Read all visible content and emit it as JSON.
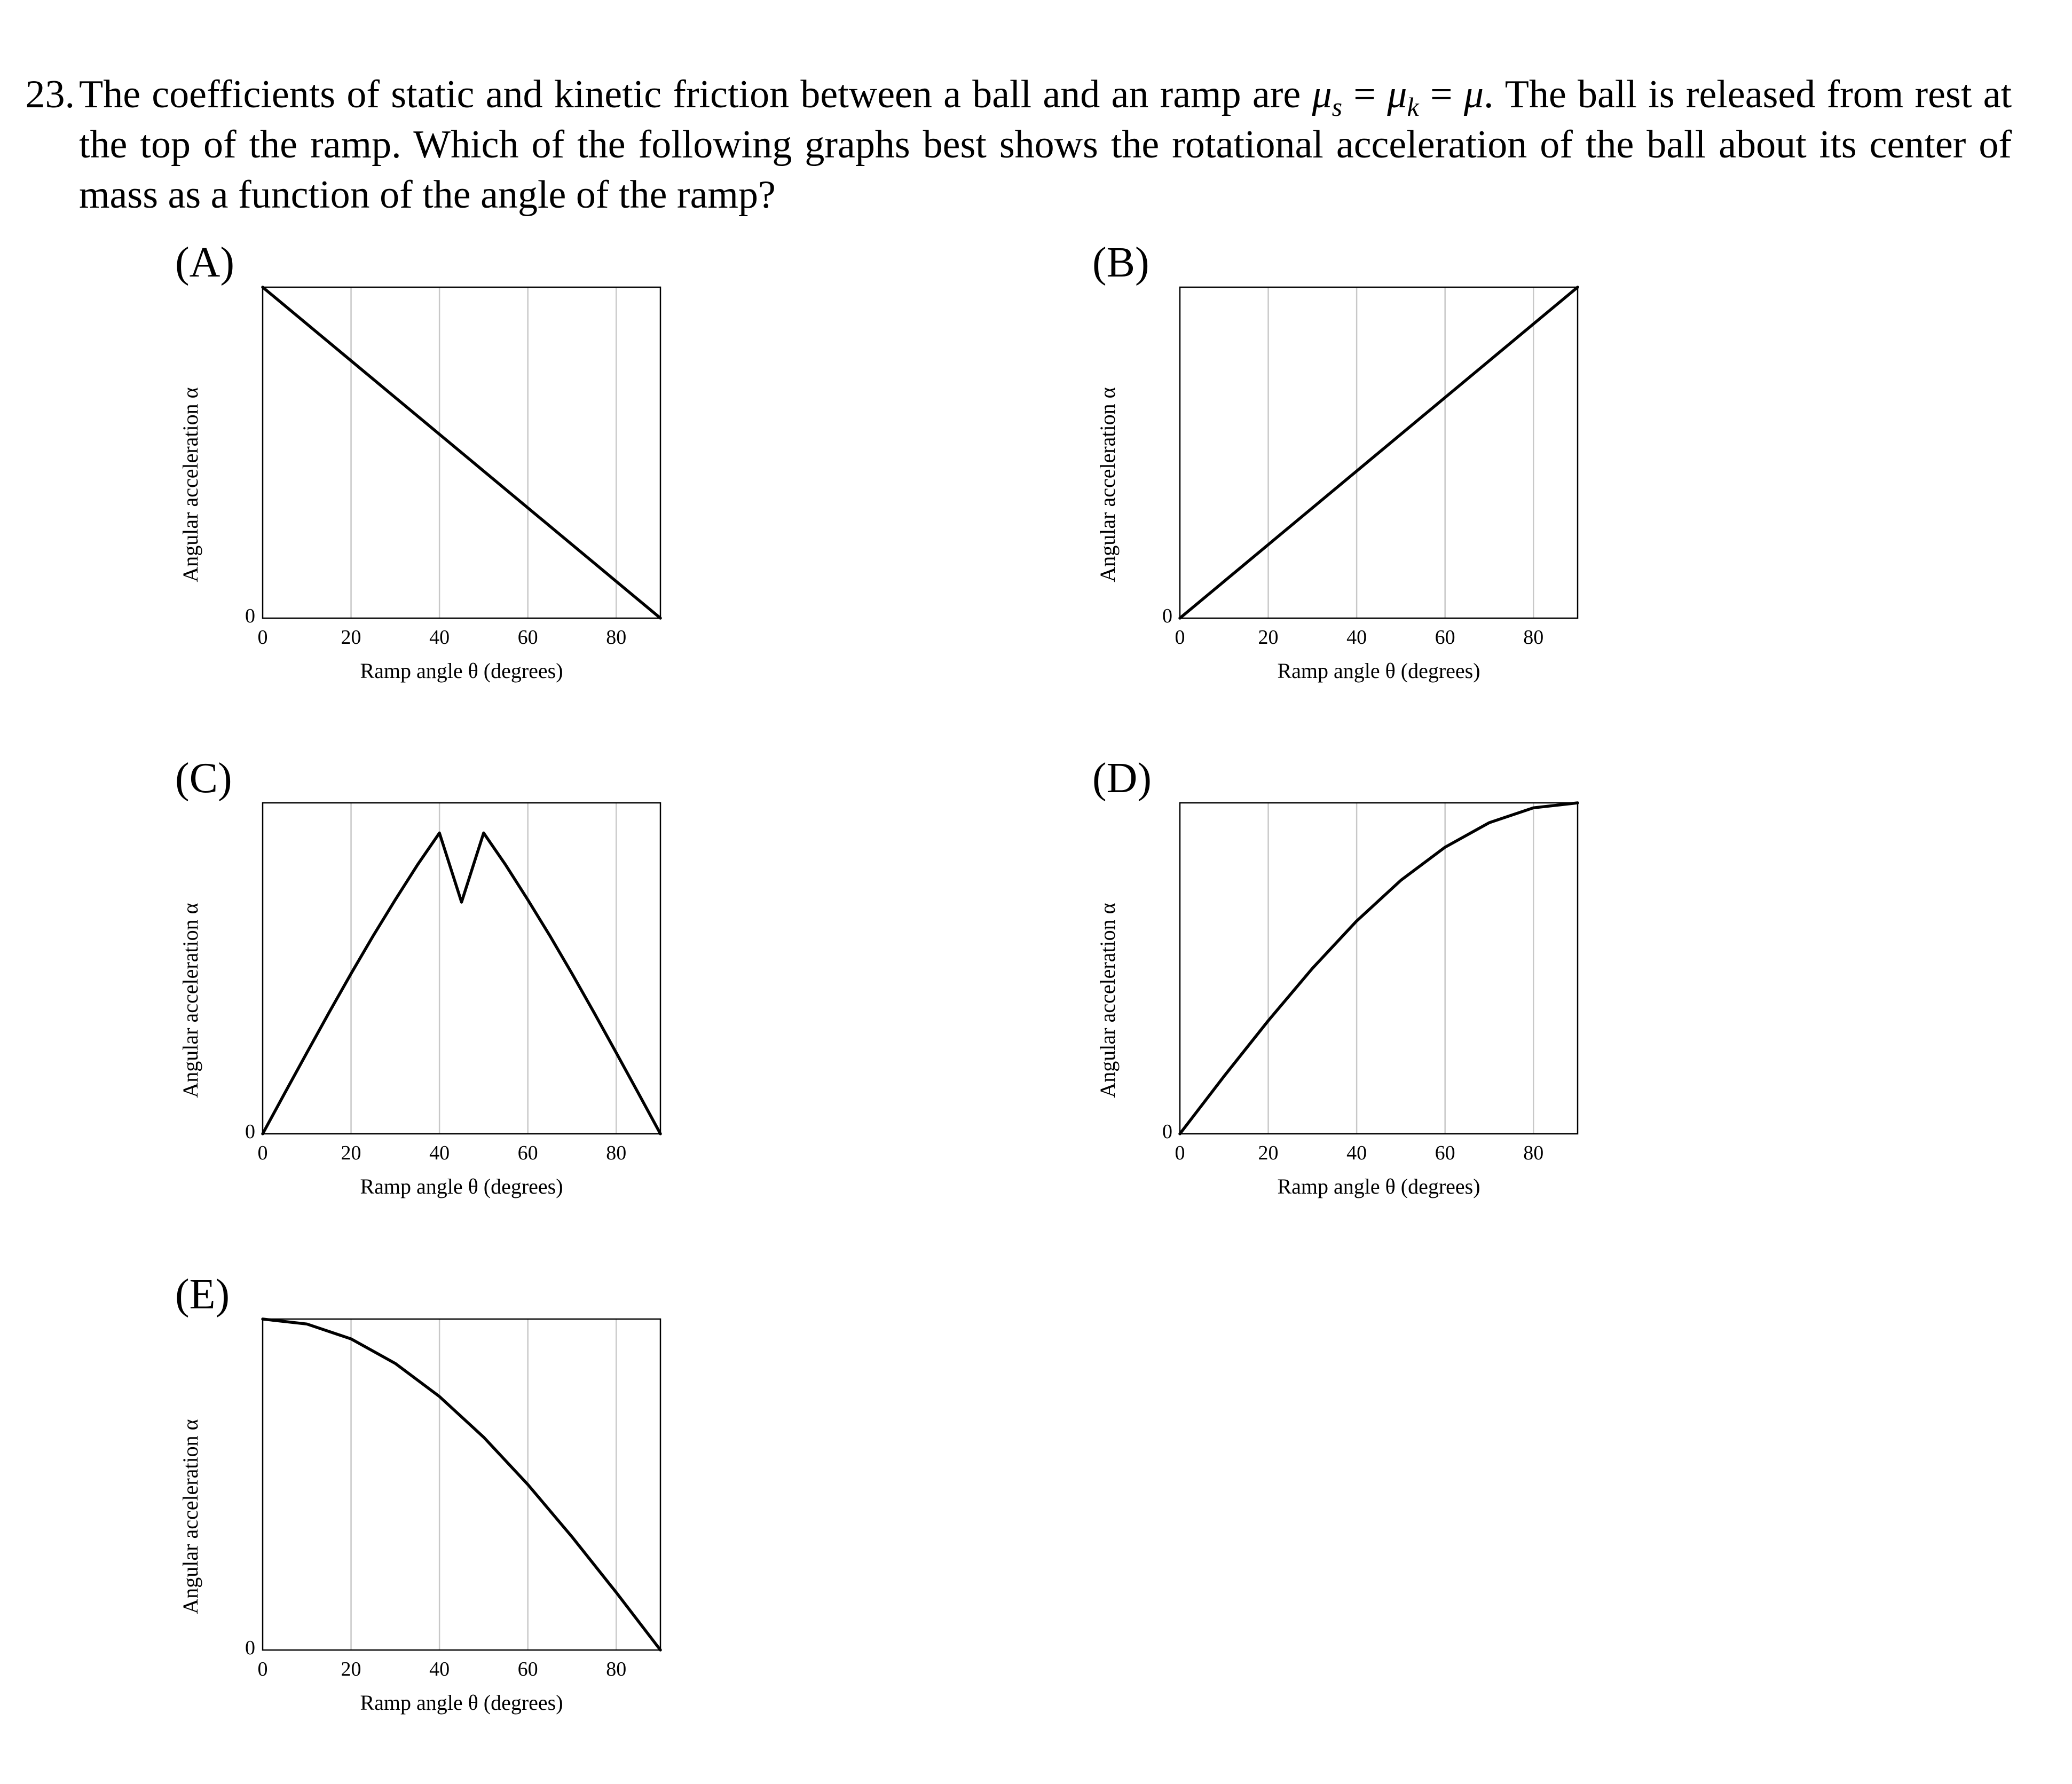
{
  "question": {
    "number": "23.",
    "part1": "The coefficients of static and kinetic friction between a ball and an ramp are ",
    "mu_s": "μ",
    "sub_s": "s",
    "eq1": " = ",
    "mu_k": "μ",
    "sub_k": "k",
    "eq2": " = ",
    "mu": "μ",
    "part2": ". The ball is released from rest at the top of the ramp. Which of the following graphs best shows the rotational acceleration of the ball about its center of mass as a function of the angle of the ramp?"
  },
  "chart_data": [
    {
      "label": "(A)",
      "type": "line",
      "xlabel": "Ramp angle θ (degrees)",
      "ylabel": "Angular acceleration α",
      "xlim": [
        0,
        90
      ],
      "ylim": [
        0,
        1
      ],
      "xticks": [
        "0",
        "20",
        "40",
        "60",
        "80"
      ],
      "yticks": [
        "0"
      ],
      "grid": "vertical",
      "x": [
        0,
        90
      ],
      "y": [
        1,
        0
      ]
    },
    {
      "label": "(B)",
      "type": "line",
      "xlabel": "Ramp angle θ (degrees)",
      "ylabel": "Angular acceleration α",
      "xlim": [
        0,
        90
      ],
      "ylim": [
        0,
        1
      ],
      "xticks": [
        "0",
        "20",
        "40",
        "60",
        "80"
      ],
      "yticks": [
        "0"
      ],
      "grid": "vertical",
      "x": [
        0,
        90
      ],
      "y": [
        0,
        1
      ]
    },
    {
      "label": "(C)",
      "type": "line",
      "xlabel": "Ramp angle θ (degrees)",
      "ylabel": "Angular acceleration α",
      "xlim": [
        0,
        90
      ],
      "ylim": [
        0,
        1
      ],
      "xticks": [
        "0",
        "20",
        "40",
        "60",
        "80"
      ],
      "yticks": [
        "0"
      ],
      "grid": "vertical",
      "x": [
        0,
        5,
        10,
        15,
        20,
        25,
        30,
        35,
        40,
        45,
        50,
        55,
        60,
        65,
        70,
        75,
        80,
        85,
        90
      ],
      "y": [
        0,
        0.123,
        0.245,
        0.366,
        0.484,
        0.598,
        0.707,
        0.812,
        0.909,
        0.7,
        0.909,
        0.812,
        0.707,
        0.598,
        0.484,
        0.366,
        0.245,
        0.123,
        0
      ]
    },
    {
      "label": "(D)",
      "type": "line",
      "xlabel": "Ramp angle θ (degrees)",
      "ylabel": "Angular acceleration α",
      "xlim": [
        0,
        90
      ],
      "ylim": [
        0,
        1
      ],
      "xticks": [
        "0",
        "20",
        "40",
        "60",
        "80"
      ],
      "yticks": [
        "0"
      ],
      "grid": "vertical",
      "x": [
        0,
        10,
        20,
        30,
        40,
        50,
        60,
        70,
        80,
        90
      ],
      "y": [
        0,
        0.174,
        0.342,
        0.5,
        0.643,
        0.766,
        0.866,
        0.94,
        0.985,
        1
      ]
    },
    {
      "label": "(E)",
      "type": "line",
      "xlabel": "Ramp angle θ (degrees)",
      "ylabel": "Angular acceleration α",
      "xlim": [
        0,
        90
      ],
      "ylim": [
        0,
        1
      ],
      "xticks": [
        "0",
        "20",
        "40",
        "60",
        "80"
      ],
      "yticks": [
        "0"
      ],
      "grid": "vertical",
      "x": [
        0,
        10,
        20,
        30,
        40,
        50,
        60,
        70,
        80,
        90
      ],
      "y": [
        1,
        0.985,
        0.94,
        0.866,
        0.766,
        0.643,
        0.5,
        0.342,
        0.174,
        0
      ]
    }
  ]
}
